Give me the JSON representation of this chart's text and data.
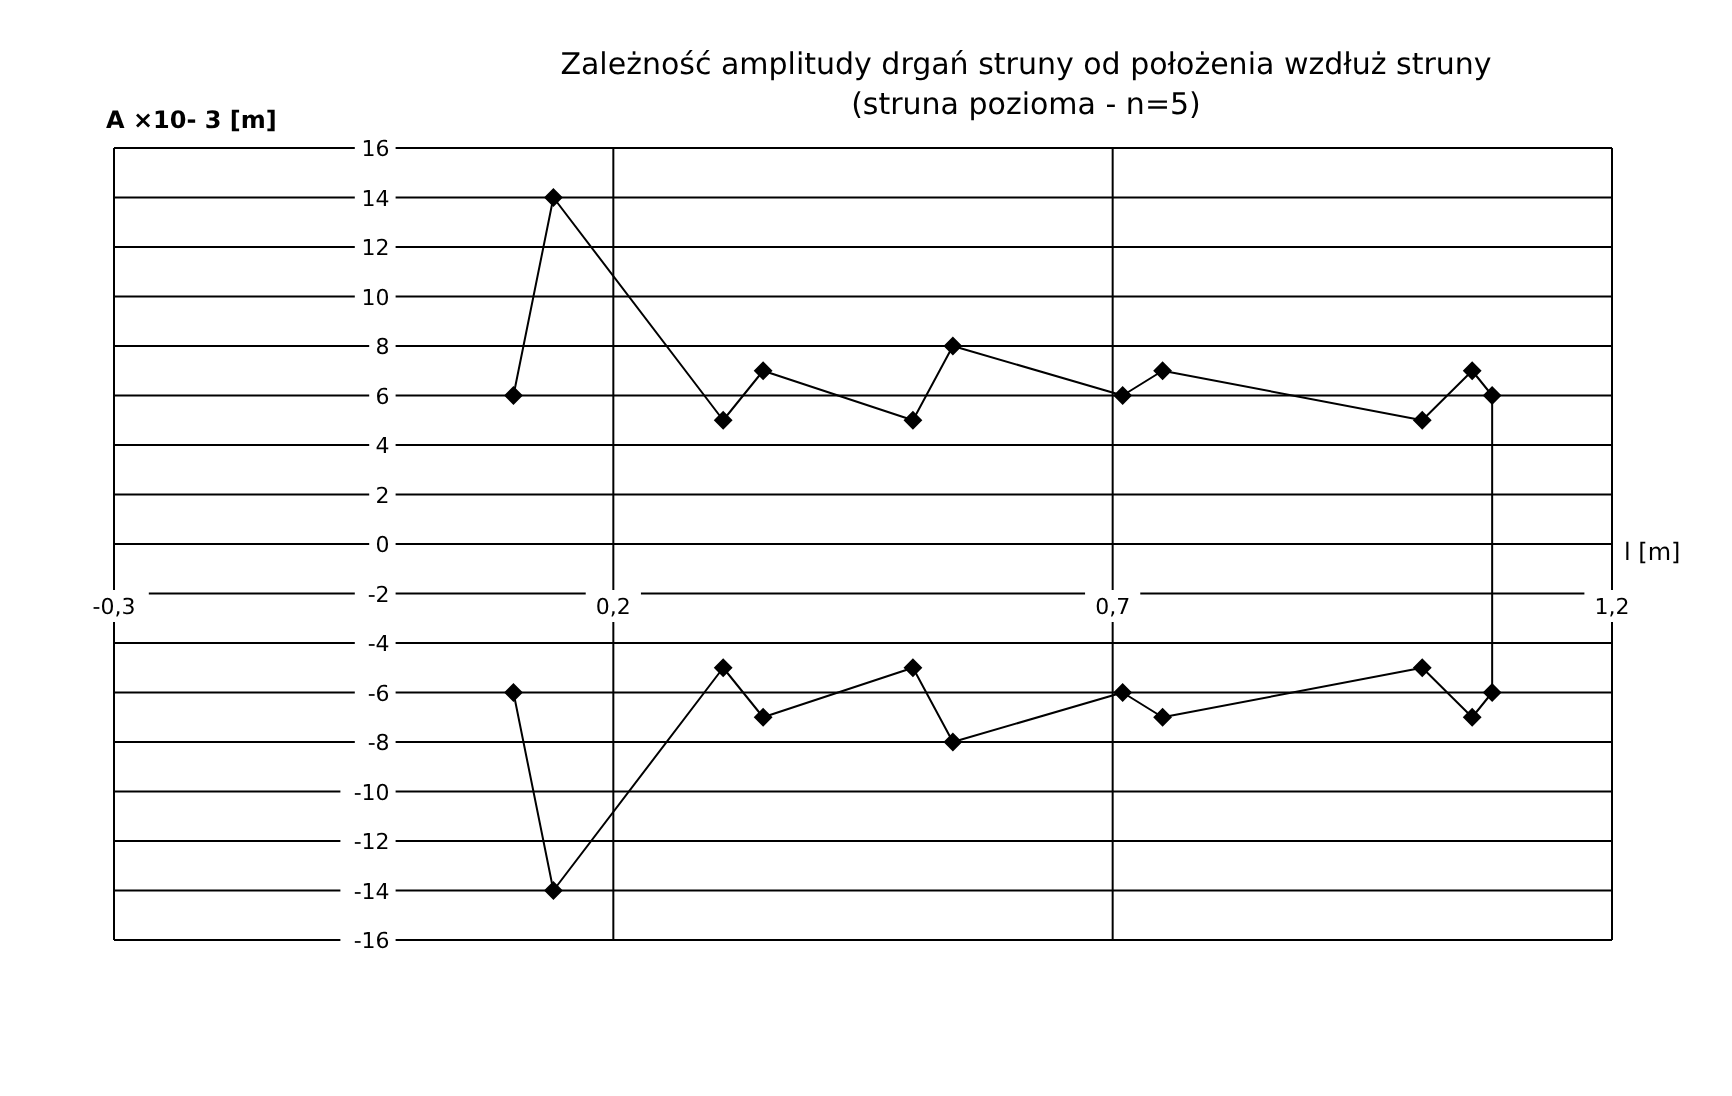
{
  "chart_data": {
    "type": "line",
    "title": "Zależność amplitudy drgań struny od położenia wzdłuż struny",
    "subtitle": "(struna pozioma  - n=5)",
    "xlabel": "l [m]",
    "ylabel": "A ×10- 3 [m]",
    "x": [
      0.1,
      0.14,
      0.31,
      0.35,
      0.5,
      0.54,
      0.71,
      0.75,
      1.01,
      1.06,
      1.08,
      1.08,
      1.06,
      1.01,
      0.75,
      0.71,
      0.54,
      0.5,
      0.35,
      0.31,
      0.14,
      0.1
    ],
    "series": [
      {
        "color": "#000000",
        "values": [
          6,
          14,
          5,
          7,
          5,
          8,
          6,
          7,
          5,
          7,
          6,
          -6,
          -7,
          -5,
          -7,
          -6,
          -8,
          -5,
          -7,
          -5,
          -14,
          -6
        ]
      }
    ],
    "xlim": [
      -0.3,
      1.2
    ],
    "xticks": [
      {
        "value": -0.3,
        "label": "-0,3"
      },
      {
        "value": 0.2,
        "label": "0,2"
      },
      {
        "value": 0.7,
        "label": "0,7"
      },
      {
        "value": 1.2,
        "label": "1,2"
      }
    ],
    "ylim": [
      -16,
      16
    ],
    "yticks": [
      -16,
      -14,
      -12,
      -10,
      -8,
      -6,
      -4,
      -2,
      0,
      2,
      4,
      6,
      8,
      10,
      12,
      14,
      16
    ],
    "grid": true,
    "marker": "diamond",
    "line_style": "solid"
  }
}
